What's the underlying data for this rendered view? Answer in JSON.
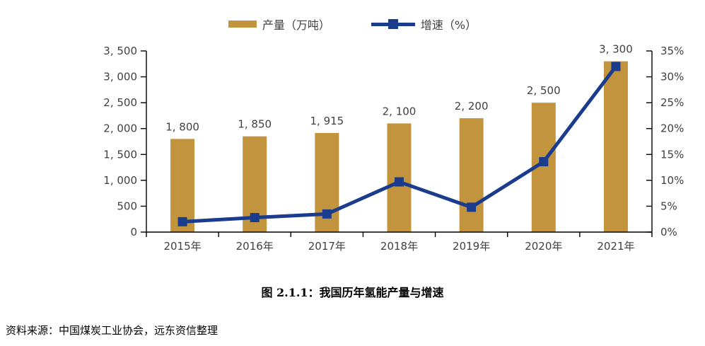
{
  "legend": {
    "bar_label": "产量（万吨）",
    "line_label": "增速（%）"
  },
  "title": "图 2.1.1：我国历年氢能产量与增速",
  "source": "资料来源：中国煤炭工业协会，远东资信整理",
  "colors": {
    "bar": "#C2943D",
    "line": "#1B3C8C",
    "axis": "#000000",
    "text": "#404040"
  },
  "chart_data": {
    "type": "bar",
    "subtype": "bar+line combo, dual axis",
    "title": "图 2.1.1：我国历年氢能产量与增速",
    "categories": [
      "2015年",
      "2016年",
      "2017年",
      "2018年",
      "2019年",
      "2020年",
      "2021年"
    ],
    "series": [
      {
        "name": "产量（万吨）",
        "type": "bar",
        "axis": "left",
        "values": [
          1800,
          1850,
          1915,
          2100,
          2200,
          2500,
          3300
        ],
        "labels": [
          "1, 800",
          "1, 850",
          "1, 915",
          "2, 100",
          "2, 200",
          "2, 500",
          "3, 300"
        ]
      },
      {
        "name": "增速（%）",
        "type": "line",
        "axis": "right",
        "values": [
          2.0,
          2.8,
          3.5,
          9.7,
          4.8,
          13.6,
          32.0
        ]
      }
    ],
    "left_axis": {
      "min": 0,
      "max": 3500,
      "step": 500,
      "tick_labels": [
        "0",
        "500",
        "1, 000",
        "1, 500",
        "2, 000",
        "2, 500",
        "3, 000",
        "3, 500"
      ]
    },
    "right_axis": {
      "min": 0,
      "max": 35,
      "step": 5,
      "tick_labels": [
        "0%",
        "5%",
        "10%",
        "15%",
        "20%",
        "25%",
        "30%",
        "35%"
      ]
    },
    "grid": false,
    "legend_position": "top-center"
  }
}
